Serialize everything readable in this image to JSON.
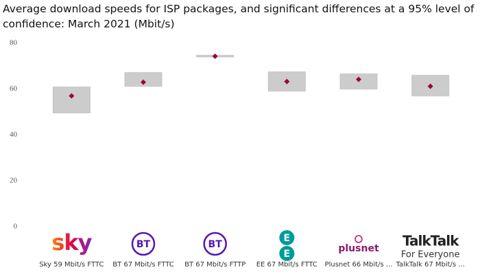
{
  "chart_data": {
    "type": "range",
    "title": "Average download speeds for ISP packages, and significant differences at a 95% level of confidence: March 2021 (Mbit/s)",
    "categories": [
      "Sky 59 Mbit/s FTTC",
      "BT 67 Mbit/s FTTC",
      "BT 67 Mbit/s FTTP",
      "EE 67 Mbit/s FTTC",
      "Plusnet 66 Mbit/s ...",
      "TalkTalk 67 Mbit/s ..."
    ],
    "logos": [
      [
        "sky"
      ],
      [
        "BT"
      ],
      [
        "BT"
      ],
      [
        "E",
        "E"
      ],
      [
        "plusnet"
      ],
      [
        "TalkTalk",
        "For Everyone"
      ]
    ],
    "values": [
      57.0,
      63.0,
      74.3,
      63.3,
      64.2,
      61.2
    ],
    "lower": [
      49.6,
      61.2,
      74.0,
      59.1,
      60.0,
      57.0
    ],
    "upper": [
      60.9,
      67.2,
      74.7,
      67.5,
      66.6,
      66.0
    ],
    "color": "#a0003c",
    "range_color": "#cccccc",
    "ylim": [
      0,
      80
    ],
    "yticks": [
      0,
      20,
      40,
      60,
      80
    ]
  }
}
